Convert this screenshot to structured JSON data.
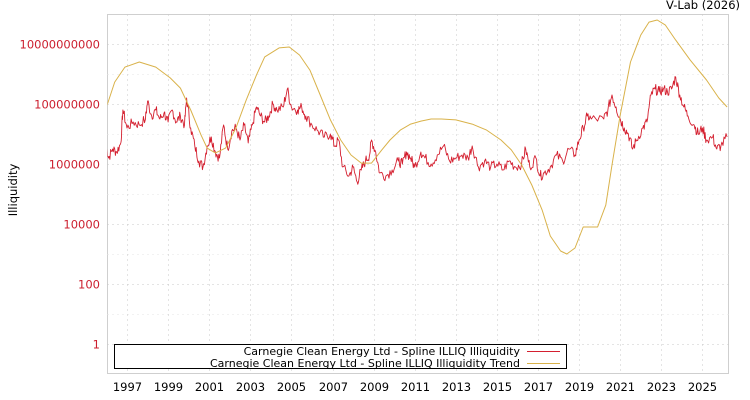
{
  "header": {
    "credit": "V-Lab (2026)"
  },
  "chart_data": {
    "type": "line",
    "title": "",
    "xlabel": "",
    "ylabel": "Illiquidity",
    "yscale": "log",
    "ylim": [
      0.2,
      1000000000000
    ],
    "xlim": [
      1996.0,
      2026.2
    ],
    "grid": true,
    "legend_position": "bottom-left inside",
    "y_ticks": [
      {
        "value": 1,
        "label": "1"
      },
      {
        "value": 100,
        "label": "100"
      },
      {
        "value": 10000,
        "label": "10000"
      },
      {
        "value": 1000000,
        "label": "1000000"
      },
      {
        "value": 100000000,
        "label": "100000000"
      },
      {
        "value": 10000000000,
        "label": "10000000000"
      }
    ],
    "x_ticks": [
      "1997",
      "1999",
      "2001",
      "2003",
      "2005",
      "2007",
      "2009",
      "2011",
      "2013",
      "2015",
      "2017",
      "2019",
      "2021",
      "2023",
      "2025"
    ],
    "series": [
      {
        "name": "Carnegie Clean Energy Ltd - Spline ILLIQ Illiquidity",
        "color": "#d41f2f",
        "points_log10": [
          [
            1996.0,
            6.6
          ],
          [
            1996.1,
            6.2
          ],
          [
            1996.3,
            6.5
          ],
          [
            1996.5,
            6.4
          ],
          [
            1996.7,
            6.7
          ],
          [
            1996.8,
            7.8
          ],
          [
            1997.0,
            7.2
          ],
          [
            1997.3,
            7.4
          ],
          [
            1997.6,
            7.3
          ],
          [
            1997.9,
            7.5
          ],
          [
            1998.0,
            8.1
          ],
          [
            1998.2,
            7.6
          ],
          [
            1998.4,
            7.8
          ],
          [
            1998.6,
            7.5
          ],
          [
            1998.8,
            7.7
          ],
          [
            1999.0,
            7.4
          ],
          [
            1999.2,
            7.8
          ],
          [
            1999.4,
            7.4
          ],
          [
            1999.6,
            7.6
          ],
          [
            1999.8,
            7.3
          ],
          [
            1999.9,
            8.2
          ],
          [
            2000.1,
            7.2
          ],
          [
            2000.3,
            6.6
          ],
          [
            2000.5,
            6.1
          ],
          [
            2000.7,
            5.9
          ],
          [
            2000.9,
            6.6
          ],
          [
            2001.1,
            6.9
          ],
          [
            2001.3,
            6.4
          ],
          [
            2001.5,
            6.2
          ],
          [
            2001.7,
            7.3
          ],
          [
            2001.9,
            6.5
          ],
          [
            2002.1,
            7.1
          ],
          [
            2002.3,
            7.2
          ],
          [
            2002.5,
            6.8
          ],
          [
            2002.7,
            7.3
          ],
          [
            2002.9,
            6.7
          ],
          [
            2003.1,
            7.3
          ],
          [
            2003.3,
            7.9
          ],
          [
            2003.5,
            7.6
          ],
          [
            2003.7,
            7.4
          ],
          [
            2003.9,
            7.6
          ],
          [
            2004.1,
            8.0
          ],
          [
            2004.3,
            7.8
          ],
          [
            2004.6,
            7.9
          ],
          [
            2004.8,
            8.5
          ],
          [
            2005.0,
            7.9
          ],
          [
            2005.3,
            7.8
          ],
          [
            2005.5,
            7.9
          ],
          [
            2005.7,
            7.6
          ],
          [
            2006.0,
            7.3
          ],
          [
            2006.3,
            7.1
          ],
          [
            2006.6,
            6.9
          ],
          [
            2006.9,
            7.0
          ],
          [
            2007.1,
            6.6
          ],
          [
            2007.3,
            6.8
          ],
          [
            2007.5,
            5.9
          ],
          [
            2007.8,
            5.6
          ],
          [
            2008.0,
            5.9
          ],
          [
            2008.2,
            5.4
          ],
          [
            2008.4,
            5.8
          ],
          [
            2008.6,
            6.1
          ],
          [
            2008.8,
            6.3
          ],
          [
            2008.9,
            6.8
          ],
          [
            2009.1,
            6.4
          ],
          [
            2009.3,
            5.7
          ],
          [
            2009.6,
            5.6
          ],
          [
            2009.9,
            5.8
          ],
          [
            2010.2,
            6.1
          ],
          [
            2010.4,
            6.0
          ],
          [
            2010.6,
            6.4
          ],
          [
            2010.8,
            6.2
          ],
          [
            2011.0,
            5.9
          ],
          [
            2011.3,
            6.4
          ],
          [
            2011.5,
            6.2
          ],
          [
            2011.8,
            6.0
          ],
          [
            2012.1,
            6.3
          ],
          [
            2012.4,
            6.6
          ],
          [
            2012.7,
            6.1
          ],
          [
            2013.0,
            6.2
          ],
          [
            2013.3,
            6.3
          ],
          [
            2013.6,
            6.2
          ],
          [
            2013.8,
            6.6
          ],
          [
            2014.1,
            5.9
          ],
          [
            2014.4,
            6.1
          ],
          [
            2014.7,
            5.9
          ],
          [
            2015.0,
            6.0
          ],
          [
            2015.3,
            5.8
          ],
          [
            2015.6,
            6.1
          ],
          [
            2015.9,
            5.9
          ],
          [
            2016.2,
            6.0
          ],
          [
            2016.4,
            6.5
          ],
          [
            2016.6,
            5.9
          ],
          [
            2016.9,
            6.2
          ],
          [
            2017.1,
            5.6
          ],
          [
            2017.3,
            5.7
          ],
          [
            2017.6,
            5.9
          ],
          [
            2017.9,
            6.3
          ],
          [
            2018.2,
            6.1
          ],
          [
            2018.5,
            6.5
          ],
          [
            2018.8,
            6.3
          ],
          [
            2019.0,
            6.8
          ],
          [
            2019.2,
            7.2
          ],
          [
            2019.4,
            7.6
          ],
          [
            2019.6,
            7.5
          ],
          [
            2020.2,
            7.5
          ],
          [
            2020.4,
            7.8
          ],
          [
            2020.6,
            8.3
          ],
          [
            2020.8,
            7.9
          ],
          [
            2021.0,
            7.5
          ],
          [
            2021.2,
            7.2
          ],
          [
            2021.4,
            7.0
          ],
          [
            2021.6,
            6.5
          ],
          [
            2021.8,
            6.8
          ],
          [
            2022.1,
            7.2
          ],
          [
            2022.3,
            7.4
          ],
          [
            2022.5,
            8.3
          ],
          [
            2022.7,
            8.5
          ],
          [
            2022.9,
            8.4
          ],
          [
            2023.1,
            8.5
          ],
          [
            2023.3,
            8.4
          ],
          [
            2023.5,
            8.5
          ],
          [
            2023.7,
            8.9
          ],
          [
            2023.9,
            8.3
          ],
          [
            2024.1,
            7.9
          ],
          [
            2024.3,
            7.6
          ],
          [
            2024.6,
            7.3
          ],
          [
            2024.8,
            7.0
          ],
          [
            2025.0,
            7.2
          ],
          [
            2025.2,
            6.8
          ],
          [
            2025.5,
            6.9
          ],
          [
            2025.7,
            6.5
          ],
          [
            2025.9,
            6.6
          ],
          [
            2026.2,
            6.9
          ]
        ]
      },
      {
        "name": "Carnegie Clean Energy Ltd - Spline ILLIQ Illiquidity Trend",
        "color": "#d9b24a",
        "points_log10": [
          [
            1996.0,
            7.9
          ],
          [
            1996.4,
            8.73
          ],
          [
            1996.9,
            9.23
          ],
          [
            1997.6,
            9.4
          ],
          [
            1998.4,
            9.23
          ],
          [
            1999.1,
            8.87
          ],
          [
            1999.6,
            8.53
          ],
          [
            2000.1,
            7.8
          ],
          [
            2000.6,
            6.97
          ],
          [
            2000.9,
            6.53
          ],
          [
            2001.3,
            6.37
          ],
          [
            2001.8,
            6.53
          ],
          [
            2002.3,
            7.2
          ],
          [
            2002.8,
            8.13
          ],
          [
            2003.3,
            8.97
          ],
          [
            2003.7,
            9.57
          ],
          [
            2004.4,
            9.87
          ],
          [
            2004.9,
            9.9
          ],
          [
            2005.4,
            9.63
          ],
          [
            2005.9,
            9.13
          ],
          [
            2006.4,
            8.3
          ],
          [
            2006.9,
            7.47
          ],
          [
            2007.4,
            6.8
          ],
          [
            2007.9,
            6.3
          ],
          [
            2008.4,
            6.03
          ],
          [
            2008.9,
            6.03
          ],
          [
            2009.4,
            6.47
          ],
          [
            2009.8,
            6.8
          ],
          [
            2010.3,
            7.13
          ],
          [
            2010.8,
            7.33
          ],
          [
            2011.3,
            7.43
          ],
          [
            2011.8,
            7.5
          ],
          [
            2012.3,
            7.5
          ],
          [
            2013.0,
            7.47
          ],
          [
            2013.8,
            7.33
          ],
          [
            2014.5,
            7.13
          ],
          [
            2015.2,
            6.8
          ],
          [
            2015.7,
            6.47
          ],
          [
            2016.2,
            5.97
          ],
          [
            2016.7,
            5.3
          ],
          [
            2017.2,
            4.47
          ],
          [
            2017.6,
            3.6
          ],
          [
            2018.1,
            3.1
          ],
          [
            2018.4,
            3.0
          ],
          [
            2018.8,
            3.2
          ],
          [
            2019.2,
            3.9
          ],
          [
            2019.9,
            3.9
          ],
          [
            2020.3,
            4.63
          ],
          [
            2020.6,
            5.97
          ],
          [
            2021.0,
            7.63
          ],
          [
            2021.5,
            9.4
          ],
          [
            2022.0,
            10.3
          ],
          [
            2022.4,
            10.73
          ],
          [
            2022.8,
            10.8
          ],
          [
            2023.2,
            10.63
          ],
          [
            2023.7,
            10.13
          ],
          [
            2024.4,
            9.47
          ],
          [
            2025.2,
            8.8
          ],
          [
            2025.8,
            8.2
          ],
          [
            2026.2,
            7.9
          ]
        ]
      }
    ]
  },
  "legend": {
    "items": [
      {
        "label": "Carnegie Clean Energy Ltd - Spline ILLIQ Illiquidity",
        "color": "#d41f2f"
      },
      {
        "label": "Carnegie Clean Energy Ltd - Spline ILLIQ Illiquidity Trend",
        "color": "#d9b24a"
      }
    ]
  }
}
